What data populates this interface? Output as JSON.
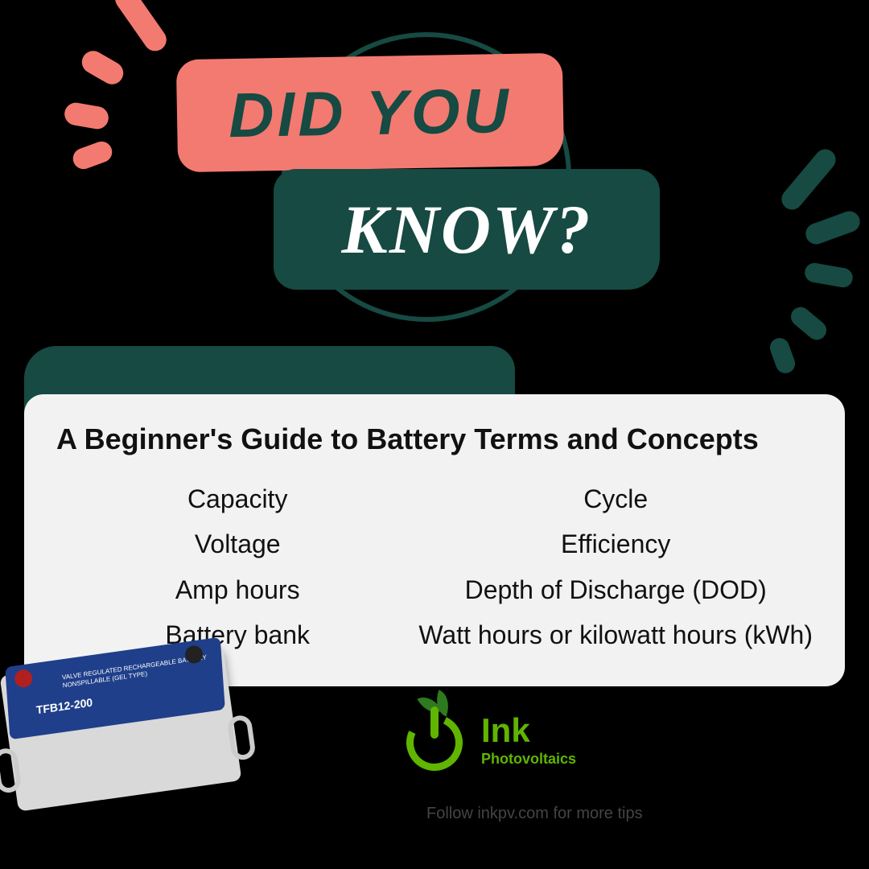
{
  "colors": {
    "bg": "#000000",
    "pink": "#f37a70",
    "dark_green": "#164a42",
    "card_bg": "#f2f2f2",
    "logo_green": "#5fb500",
    "leaf_dark": "#2d7a1f",
    "battery_blue": "#1f3f8a",
    "battery_body": "#d9d9d9"
  },
  "headline": {
    "line1": "DID YOU",
    "line2": "KNOW?"
  },
  "card": {
    "title": "A Beginner's Guide to Battery Terms and Concepts",
    "col1": [
      "Capacity",
      "Voltage",
      "Amp hours",
      "Battery bank"
    ],
    "col2": [
      "Cycle",
      "Efficiency",
      "Depth of Discharge (DOD)",
      "Watt hours or kilowatt hours (kWh)"
    ]
  },
  "battery": {
    "label_small": "VALVE REGULATED\nRECHARGEABLE BATTERY\nNONSPILLABLE (GEL TYPE)",
    "model": "TFB12-200"
  },
  "logo": {
    "brand": "Ink",
    "subtitle": "Photovoltaics",
    "follow": "Follow inkpv.com for more tips"
  }
}
